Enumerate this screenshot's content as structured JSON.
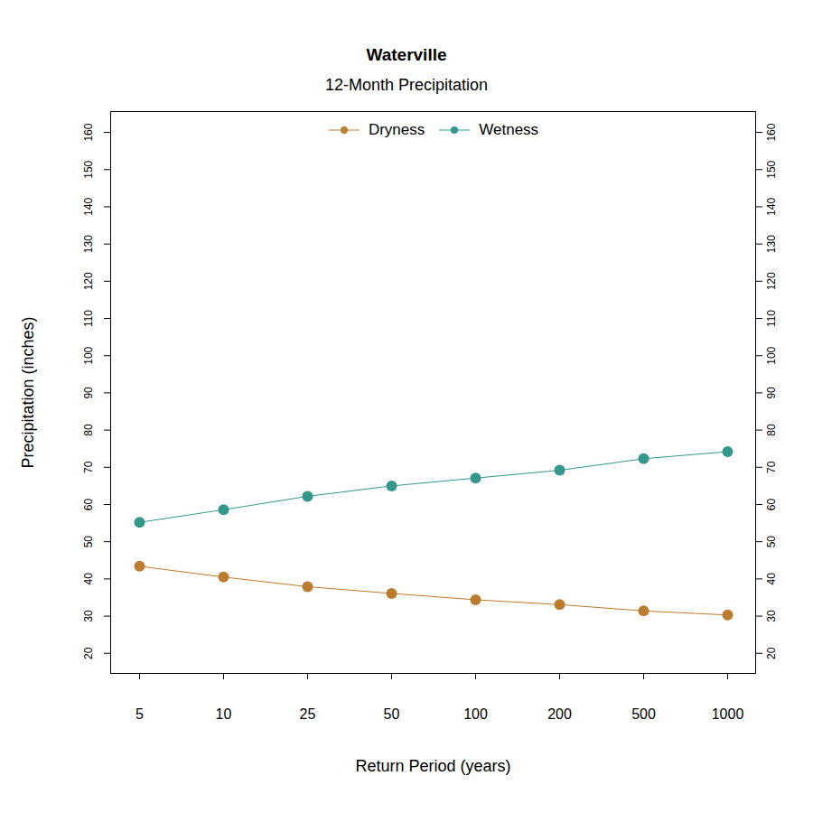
{
  "chart_data": {
    "type": "line",
    "title": "Waterville",
    "subtitle": "12-Month Precipitation",
    "x_label": "Return Period (years)",
    "y_label": "Precipitation (inches)",
    "categories": [
      "5",
      "10",
      "25",
      "50",
      "100",
      "200",
      "500",
      "1000"
    ],
    "series": [
      {
        "name": "Dryness",
        "color": "#bc7c2f",
        "values": [
          43.4,
          40.5,
          37.9,
          36.1,
          34.4,
          33.1,
          31.4,
          30.3
        ]
      },
      {
        "name": "Wetness",
        "color": "#35968c",
        "values": [
          55.2,
          58.6,
          62.2,
          65.0,
          67.1,
          69.2,
          72.3,
          74.2
        ]
      }
    ],
    "ylim": [
      14.6,
      165.6
    ],
    "yticks": [
      20,
      30,
      40,
      50,
      60,
      70,
      80,
      90,
      100,
      110,
      120,
      130,
      140,
      150,
      160
    ],
    "grid": false,
    "legend": "top",
    "marker": "circle",
    "line_style": "solid"
  }
}
